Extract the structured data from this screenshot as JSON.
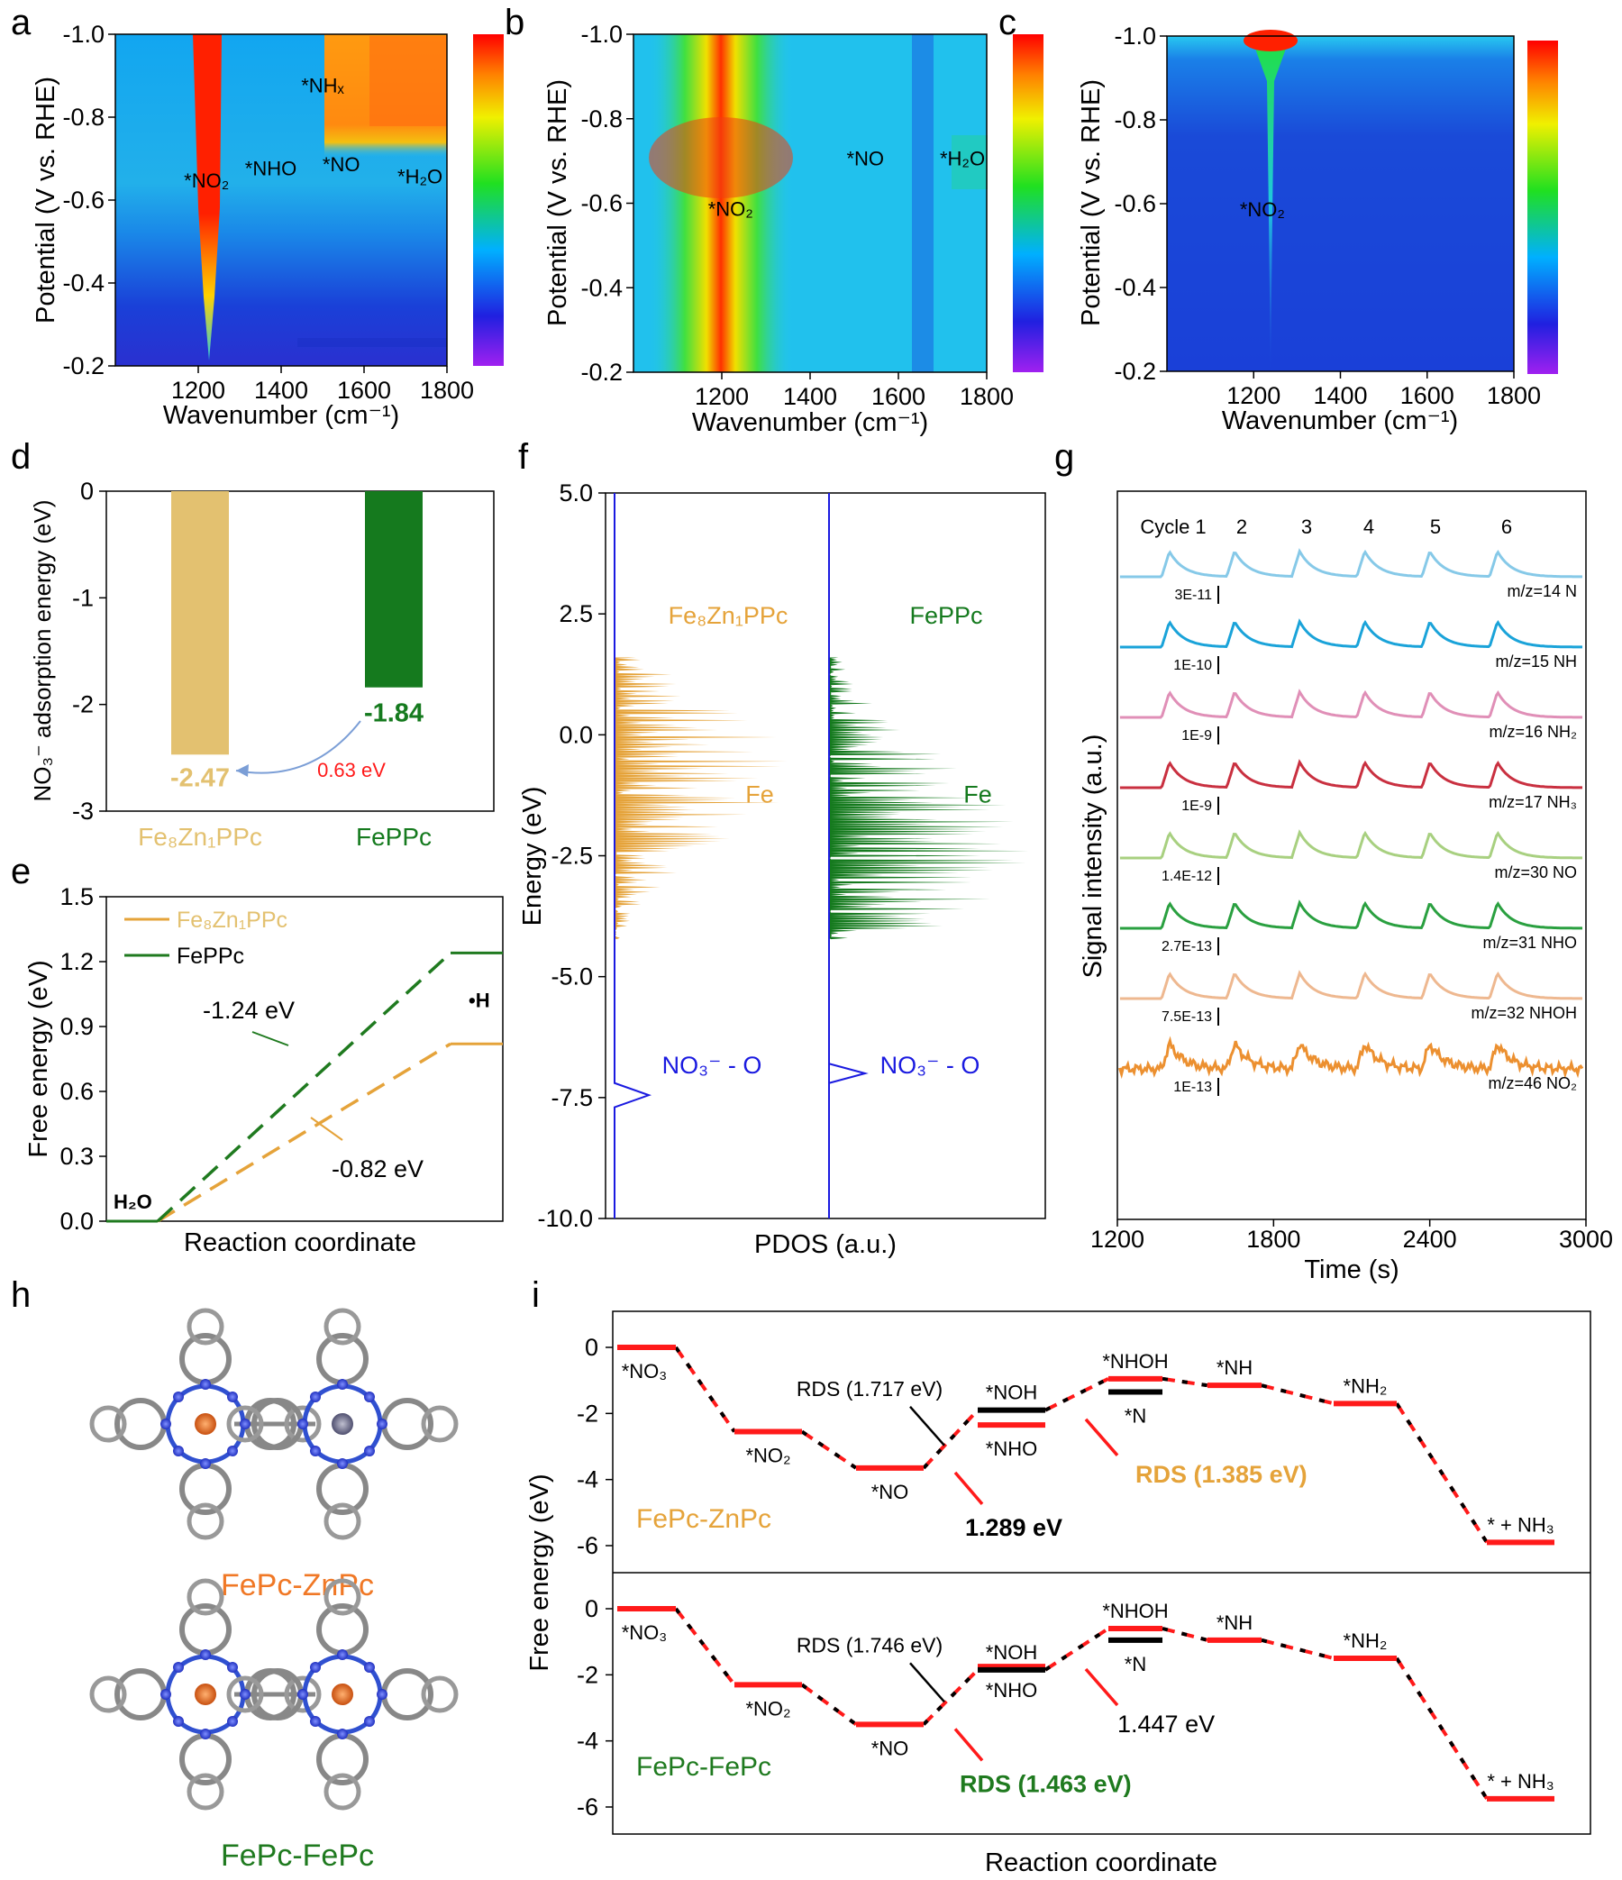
{
  "panel_letters": [
    "a",
    "b",
    "c",
    "d",
    "e",
    "f",
    "g",
    "h",
    "i"
  ],
  "colors": {
    "orange": "#e5a33a",
    "tan": "#e3c170",
    "green": "#157a1e",
    "darkgreen": "#1f7a1f",
    "blue": "#1a1ae0",
    "red": "#ff1a1a",
    "molecule_orange": "#f07826"
  },
  "chart_data": [
    {
      "id": "a",
      "type": "heatmap",
      "xlabel": "Wavenumber (cm⁻¹)",
      "ylabel": "Potential (V vs. RHE)",
      "xticks": [
        1200,
        1400,
        1600,
        1800
      ],
      "yticks": [
        -1.0,
        -0.8,
        -0.6,
        -0.4,
        -0.2
      ],
      "xlim": [
        1000,
        1800
      ],
      "ylim": [
        -0.2,
        -1.0
      ],
      "annotations": [
        {
          "text": "*NO₂",
          "x": 1220,
          "y": -0.63
        },
        {
          "text": "*NHO",
          "x": 1375,
          "y": -0.66
        },
        {
          "text": "*NHₓ",
          "x": 1500,
          "y": -0.86
        },
        {
          "text": "*NO",
          "x": 1545,
          "y": -0.67
        },
        {
          "text": "*H₂O",
          "x": 1735,
          "y": -0.64
        }
      ]
    },
    {
      "id": "b",
      "type": "heatmap",
      "xlabel": "Wavenumber (cm⁻¹)",
      "ylabel": "Potential (V vs. RHE)",
      "xticks": [
        1200,
        1400,
        1600,
        1800
      ],
      "yticks": [
        -1.0,
        -0.8,
        -0.6,
        -0.4,
        -0.2
      ],
      "xlim": [
        1000,
        1800
      ],
      "ylim": [
        -0.2,
        -1.0
      ],
      "annotations": [
        {
          "text": "*NO₂",
          "x": 1220,
          "y": -0.57
        },
        {
          "text": "*NO",
          "x": 1525,
          "y": -0.69
        },
        {
          "text": "*H₂O",
          "x": 1745,
          "y": -0.69
        }
      ]
    },
    {
      "id": "c",
      "type": "heatmap",
      "xlabel": "Wavenumber (cm⁻¹)",
      "ylabel": "Potential (V vs. RHE)",
      "xticks": [
        1200,
        1400,
        1600,
        1800
      ],
      "yticks": [
        -1.0,
        -0.8,
        -0.6,
        -0.4,
        -0.2
      ],
      "xlim": [
        1000,
        1800
      ],
      "ylim": [
        -0.2,
        -1.0
      ],
      "annotations": [
        {
          "text": "*NO₂",
          "x": 1220,
          "y": -0.57
        }
      ]
    },
    {
      "id": "d",
      "type": "bar",
      "categories": [
        "Fe₈Zn₁PPc",
        "FePPc"
      ],
      "values": [
        -2.47,
        -1.84
      ],
      "value_labels": [
        "-2.47",
        "-1.84"
      ],
      "ylabel": "NO₃⁻ adsorption energy (eV)",
      "ylim": [
        -3,
        0
      ],
      "yticks": [
        0,
        -1,
        -2,
        -3
      ],
      "annotation": "0.63 eV"
    },
    {
      "id": "e",
      "type": "line",
      "xlabel": "Reaction coordinate",
      "ylabel": "Free energy (eV)",
      "ylim": [
        0,
        1.5
      ],
      "yticks": [
        0.0,
        0.3,
        0.6,
        0.9,
        1.2,
        1.5
      ],
      "series": [
        {
          "name": "Fe₈Zn₁PPc",
          "levels": [
            0.0,
            0.82
          ]
        },
        {
          "name": "FePPc",
          "levels": [
            0.0,
            1.24
          ]
        }
      ],
      "state_labels": [
        "H₂O",
        "•H"
      ],
      "annotations": [
        "-1.24 eV",
        "-0.82 eV"
      ]
    },
    {
      "id": "f",
      "type": "area",
      "xlabel": "PDOS (a.u.)",
      "ylabel": "Energy (eV)",
      "ylim": [
        -10.0,
        5.0
      ],
      "yticks": [
        5.0,
        2.5,
        0.0,
        -2.5,
        -5.0,
        -7.5,
        -10.0
      ],
      "panels": [
        {
          "title": "Fe₈Zn₁PPc",
          "fe_label": "Fe",
          "o_label": "NO₃⁻ - O"
        },
        {
          "title": "FePPc",
          "fe_label": "Fe",
          "o_label": "NO₃⁻ - O"
        }
      ]
    },
    {
      "id": "g",
      "type": "line",
      "xlabel": "Time (s)",
      "ylabel": "Signal intensity (a.u.)",
      "xlim": [
        1200,
        3000
      ],
      "xticks": [
        1200,
        1800,
        2400,
        3000
      ],
      "cycle_labels": [
        "Cycle 1",
        "2",
        "3",
        "4",
        "5",
        "6"
      ],
      "peaks_s": [
        1400,
        1650,
        1900,
        2150,
        2400,
        2660
      ],
      "series": [
        {
          "name": "m/z=14 N",
          "scale": "3E-11"
        },
        {
          "name": "m/z=15 NH",
          "scale": "1E-10"
        },
        {
          "name": "m/z=16 NH₂",
          "scale": "1E-9"
        },
        {
          "name": "m/z=17 NH₃",
          "scale": "1E-9"
        },
        {
          "name": "m/z=30 NO",
          "scale": "1.4E-12"
        },
        {
          "name": "m/z=31 NHO",
          "scale": "2.7E-13"
        },
        {
          "name": "m/z=32 NHOH",
          "scale": "7.5E-13"
        },
        {
          "name": "m/z=46 NO₂",
          "scale": "1E-13"
        }
      ]
    },
    {
      "id": "i",
      "type": "line",
      "xlabel": "Reaction coordinate",
      "ylabel": "Free energy (eV)",
      "yticks": [
        0,
        -2,
        -4,
        -6
      ],
      "panels": [
        {
          "name": "FePc-ZnPc",
          "steps": [
            {
              "label": "*NO₃",
              "y": 0.0
            },
            {
              "label": "*NO₂",
              "y": -2.55
            },
            {
              "label": "*NO",
              "y": -3.65
            },
            {
              "label": "*NHO",
              "y": -2.35
            },
            {
              "label": "*NOH",
              "y": -1.9
            },
            {
              "label": "*NHOH",
              "y": -0.95
            },
            {
              "label": "*N",
              "y": -1.35
            },
            {
              "label": "*NH",
              "y": -1.15
            },
            {
              "label": "*NH₂",
              "y": -1.7
            },
            {
              "label": "* + NH₃",
              "y": -5.9
            }
          ],
          "annotations": [
            "RDS (1.717 eV)",
            "1.289 eV",
            "RDS (1.385 eV)"
          ]
        },
        {
          "name": "FePc-FePc",
          "steps": [
            {
              "label": "*NO₃",
              "y": 0.0
            },
            {
              "label": "*NO₂",
              "y": -2.3
            },
            {
              "label": "*NO",
              "y": -3.5
            },
            {
              "label": "*NHO",
              "y": -1.75
            },
            {
              "label": "*NOH",
              "y": -1.85
            },
            {
              "label": "*NHOH",
              "y": -0.6
            },
            {
              "label": "*N",
              "y": -0.95
            },
            {
              "label": "*NH",
              "y": -0.95
            },
            {
              "label": "*NH₂",
              "y": -1.5
            },
            {
              "label": "* + NH₃",
              "y": -5.75
            }
          ],
          "annotations": [
            "RDS (1.746 eV)",
            "1.447 eV",
            "RDS (1.463 eV)"
          ]
        }
      ]
    }
  ],
  "structures": [
    {
      "name": "FePc-ZnPc"
    },
    {
      "name": "FePc-FePc"
    }
  ]
}
